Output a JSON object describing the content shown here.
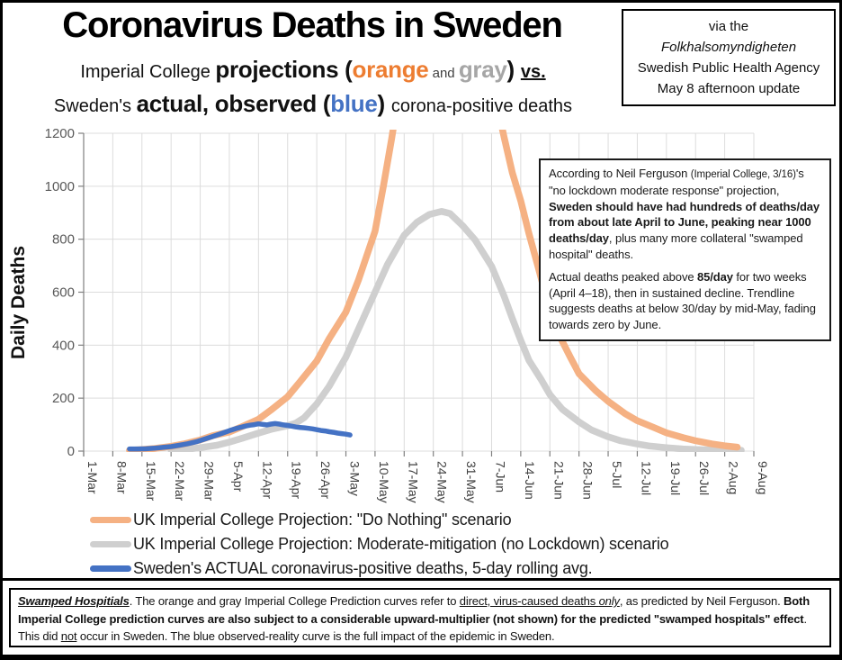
{
  "header": {
    "title": "Coronavirus Deaths in Sweden",
    "subtitle1": [
      {
        "t": "Imperial College ",
        "cls": "md"
      },
      {
        "t": "projections",
        "cls": "big"
      },
      {
        "t": " (",
        "cls": "big"
      },
      {
        "t": "orange",
        "cls": "big",
        "c": "#ED7D31"
      },
      {
        "t": " and ",
        "cls": "sm"
      },
      {
        "t": "gray",
        "cls": "big",
        "c": "#A6A6A6"
      },
      {
        "t": ")  ",
        "cls": "big"
      },
      {
        "t": "vs.",
        "cls": "md",
        "b": 1,
        "u": 1
      }
    ],
    "subtitle2": [
      {
        "t": "Sweden's ",
        "cls": "md"
      },
      {
        "t": "actual, observed",
        "cls": "big"
      },
      {
        "t": " (",
        "cls": "big"
      },
      {
        "t": "blue",
        "cls": "big",
        "c": "#4472C4"
      },
      {
        "t": ") ",
        "cls": "big"
      },
      {
        "t": "corona-positive deaths",
        "cls": "md"
      }
    ],
    "source_box": [
      "via the",
      "Folkhalsomyndigheten",
      "Swedish Public Health Agency",
      "May 8 afternoon update"
    ]
  },
  "chart_data": {
    "type": "line",
    "title": "Coronavirus Deaths in Sweden",
    "xlabel": "",
    "ylabel": "Daily Deaths",
    "grid": true,
    "x_axis": {
      "tick_labels": [
        "1-Mar",
        "8-Mar",
        "15-Mar",
        "22-Mar",
        "29-Mar",
        "5-Apr",
        "12-Apr",
        "19-Apr",
        "26-Apr",
        "3-May",
        "10-May",
        "17-May",
        "24-May",
        "31-May",
        "7-Jun",
        "14-Jun",
        "21-Jun",
        "28-Jun",
        "5-Jul",
        "12-Jul",
        "19-Jul",
        "26-Jul",
        "2-Aug",
        "9-Aug"
      ],
      "tick_interval_days": 7,
      "domain_days": [
        0,
        161
      ]
    },
    "y_axis": {
      "ticks": [
        0,
        200,
        400,
        600,
        800,
        1000,
        1200
      ],
      "domain": [
        0,
        1200
      ],
      "label": "Daily Deaths"
    },
    "series": [
      {
        "id": "imperial_do_nothing",
        "name": "UK Imperial College Projection: \"Do Nothing\" scenario",
        "color": "#F5B183",
        "stroke_width": 7.5,
        "draw_order": 2,
        "points": [
          [
            11,
            3
          ],
          [
            14,
            6
          ],
          [
            17,
            10
          ],
          [
            21,
            18
          ],
          [
            24,
            27
          ],
          [
            28,
            42
          ],
          [
            31,
            58
          ],
          [
            35,
            72
          ],
          [
            38,
            92
          ],
          [
            42,
            120
          ],
          [
            45,
            155
          ],
          [
            49,
            205
          ],
          [
            52,
            262
          ],
          [
            56,
            340
          ],
          [
            59,
            425
          ],
          [
            63,
            525
          ],
          [
            66,
            645
          ],
          [
            70,
            830
          ],
          [
            72,
            1000
          ],
          [
            74,
            1180
          ],
          [
            76,
            1380
          ],
          [
            82,
            1900
          ],
          [
            90,
            1900
          ],
          [
            96,
            1500
          ],
          [
            99,
            1330
          ],
          [
            101,
            1185
          ],
          [
            103,
            1050
          ],
          [
            105,
            945
          ],
          [
            107,
            820
          ],
          [
            109,
            705
          ],
          [
            112,
            530
          ],
          [
            114,
            445
          ],
          [
            117,
            352
          ],
          [
            119,
            292
          ],
          [
            123,
            228
          ],
          [
            126,
            188
          ],
          [
            130,
            142
          ],
          [
            133,
            115
          ],
          [
            137,
            89
          ],
          [
            140,
            69
          ],
          [
            144,
            51
          ],
          [
            147,
            39
          ],
          [
            151,
            27
          ],
          [
            154,
            20
          ],
          [
            157,
            15
          ]
        ]
      },
      {
        "id": "imperial_moderate_mitigation",
        "name": "UK Imperial College Projection: Moderate-mitigation (no Lockdown) scenario",
        "color": "#CFCFCF",
        "stroke_width": 7.5,
        "draw_order": 1,
        "points": [
          [
            21,
            3
          ],
          [
            25,
            7
          ],
          [
            28,
            13
          ],
          [
            32,
            22
          ],
          [
            35,
            34
          ],
          [
            38,
            48
          ],
          [
            42,
            68
          ],
          [
            45,
            82
          ],
          [
            49,
            96
          ],
          [
            51,
            106
          ],
          [
            53,
            126
          ],
          [
            56,
            178
          ],
          [
            59,
            245
          ],
          [
            63,
            355
          ],
          [
            66,
            460
          ],
          [
            70,
            600
          ],
          [
            73,
            705
          ],
          [
            77,
            815
          ],
          [
            80,
            863
          ],
          [
            83,
            893
          ],
          [
            86,
            905
          ],
          [
            88,
            897
          ],
          [
            91,
            852
          ],
          [
            94,
            798
          ],
          [
            98,
            698
          ],
          [
            101,
            585
          ],
          [
            103,
            500
          ],
          [
            105,
            418
          ],
          [
            107,
            342
          ],
          [
            110,
            268
          ],
          [
            112,
            213
          ],
          [
            115,
            158
          ],
          [
            119,
            110
          ],
          [
            122,
            80
          ],
          [
            126,
            54
          ],
          [
            129,
            39
          ],
          [
            133,
            27
          ],
          [
            136,
            19
          ],
          [
            140,
            13
          ],
          [
            144,
            8
          ],
          [
            147,
            6
          ],
          [
            151,
            4
          ],
          [
            154,
            3
          ],
          [
            158,
            3
          ]
        ]
      },
      {
        "id": "sweden_actual",
        "name": "Sweden's ACTUAL coronavirus-positive deaths, 5-day rolling avg.",
        "color": "#4472C4",
        "stroke_width": 5.5,
        "draw_order": 3,
        "points": [
          [
            11,
            8
          ],
          [
            13,
            8
          ],
          [
            15,
            9
          ],
          [
            17,
            11
          ],
          [
            19,
            14
          ],
          [
            21,
            17
          ],
          [
            23,
            22
          ],
          [
            25,
            28
          ],
          [
            27,
            35
          ],
          [
            29,
            45
          ],
          [
            31,
            55
          ],
          [
            33,
            66
          ],
          [
            35,
            77
          ],
          [
            37,
            87
          ],
          [
            39,
            95
          ],
          [
            40,
            98
          ],
          [
            41,
            100
          ],
          [
            42,
            103
          ],
          [
            43,
            101
          ],
          [
            44,
            99
          ],
          [
            45,
            102
          ],
          [
            46,
            104
          ],
          [
            47,
            102
          ],
          [
            48,
            99
          ],
          [
            49,
            97
          ],
          [
            50,
            94
          ],
          [
            51,
            91
          ],
          [
            52,
            89
          ],
          [
            53,
            88
          ],
          [
            54,
            86
          ],
          [
            55,
            84
          ],
          [
            56,
            81
          ],
          [
            57,
            78
          ],
          [
            58,
            76
          ],
          [
            59,
            73
          ],
          [
            60,
            71
          ],
          [
            61,
            68
          ],
          [
            62,
            66
          ],
          [
            63,
            64
          ],
          [
            64,
            61
          ]
        ]
      }
    ],
    "annotation": {
      "para1": [
        {
          "t": "According to Neil Ferguson "
        },
        {
          "t": "(Imperial College, 3/16)",
          "cls": "xs"
        },
        {
          "t": "'s \"no lockdown moderate response\" projection, "
        },
        {
          "t": "Sweden should have had hundreds of deaths/day from about late April to June, peaking near 1000 deaths/day",
          "b": 1
        },
        {
          "t": ", plus many more collateral \"swamped hospital\" deaths."
        }
      ],
      "para2": [
        {
          "t": "Actual deaths peaked above "
        },
        {
          "t": "85/day",
          "b": 1
        },
        {
          "t": " for two weeks (April 4–18), then in sustained decline. Trendline suggests deaths at below 30/day by mid-May, fading towards zero by June."
        }
      ]
    }
  },
  "legend": {
    "items": [
      {
        "label": "UK Imperial College Projection: \"Do Nothing\" scenario",
        "color": "#F5B183"
      },
      {
        "label": "UK Imperial College Projection: Moderate-mitigation (no Lockdown) scenario",
        "color": "#CFCFCF"
      },
      {
        "label": "Sweden's ACTUAL coronavirus-positive deaths, 5-day rolling avg.",
        "color": "#4472C4"
      }
    ]
  },
  "footnote": [
    {
      "t": "Swamped Hospitials",
      "b": 1,
      "i": 1,
      "u": 1
    },
    {
      "t": ". The orange and gray Imperial College Prediction curves refer to "
    },
    {
      "t": "direct, virus-caused deaths ",
      "u": 1
    },
    {
      "t": "only",
      "u": 1,
      "i": 1
    },
    {
      "t": ", as predicted by Neil Ferguson. "
    },
    {
      "t": "Both Imperial College prediction curves are also subject to a considerable upward-multiplier (not shown) for the predicted \"swamped hospitals\" effect",
      "b": 1
    },
    {
      "t": ". This did "
    },
    {
      "t": "not",
      "u": 1
    },
    {
      "t": " occur in Sweden. The blue observed-reality curve is the full impact of the epidemic in Sweden."
    }
  ],
  "colors": {
    "orange_projection": "#F5B183",
    "orange_text": "#ED7D31",
    "gray_projection": "#CFCFCF",
    "gray_text": "#A6A6A6",
    "blue_actual": "#4472C4",
    "gridline": "#DCDCDC",
    "axis": "#808080",
    "tick_text": "#595959"
  }
}
